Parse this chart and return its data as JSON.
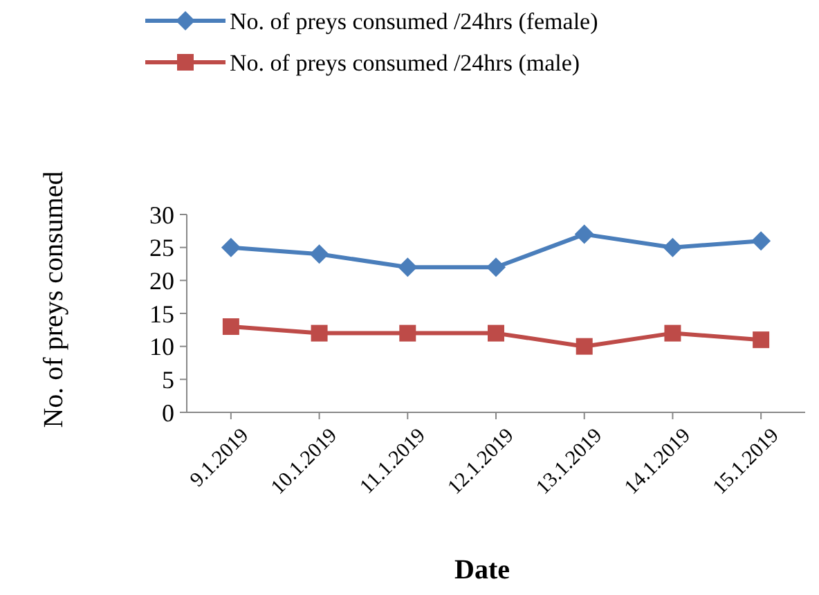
{
  "chart_data": {
    "type": "line",
    "xlabel": "Date",
    "ylabel": "No. of preys consumed",
    "categories": [
      "9.1.2019",
      "10.1.2019",
      "11.1.2019",
      "12.1.2019",
      "13.1.2019",
      "14.1.2019",
      "15.1.2019"
    ],
    "series": [
      {
        "name": "No. of preys consumed /24hrs (female)",
        "color": "#4a7ebb",
        "marker": "diamond",
        "values": [
          25,
          24,
          22,
          22,
          27,
          25,
          26
        ]
      },
      {
        "name": "No. of preys consumed /24hrs (male)",
        "color": "#be4b48",
        "marker": "square",
        "values": [
          13,
          12,
          12,
          12,
          10,
          12,
          11
        ]
      }
    ],
    "ylim": [
      0,
      30
    ],
    "yticks": [
      0,
      5,
      10,
      15,
      20,
      25,
      30
    ],
    "grid": false,
    "legend": "top",
    "line_style": "solid"
  }
}
